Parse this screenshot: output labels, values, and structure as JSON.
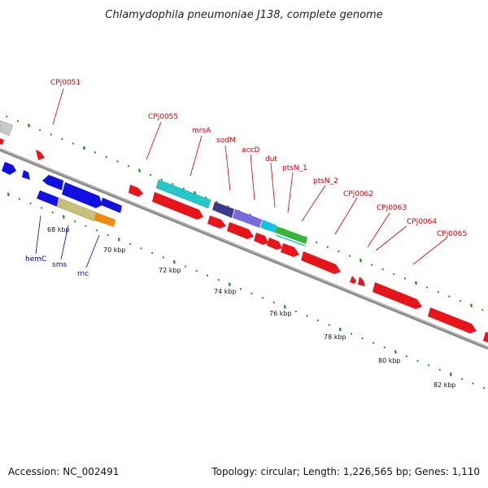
{
  "title": "Chlamydophila pneumoniae J138, complete genome",
  "footer": {
    "accession": "Accession: NC_002491",
    "summary": "Topology: circular; Length: 1,226,565 bp; Genes: 1,110"
  },
  "scale": [
    "68 kbp",
    "70 kbp",
    "72 kbp",
    "74 kbp",
    "76 kbp",
    "78 kbp",
    "80 kbp",
    "82 kbp"
  ],
  "colors": {
    "cds_forward": "#e8141b",
    "cds_reverse_blue": "#1010e0",
    "cyan": "#25c8c8",
    "khaki": "#c8c07a",
    "orange": "#f08a10",
    "navy": "#3a3a8a",
    "slate": "#7a6ae0",
    "sky": "#18c0e8",
    "green": "#36b536",
    "grey": "#c8c8c8",
    "tick_green": "#1a8a1a",
    "backbone": "#8a8a8a"
  },
  "genes_red": [
    "CPj0051",
    "CPj0055",
    "mrsA",
    "sodM",
    "accD",
    "dut",
    "ptsN_1",
    "ptsN_2",
    "CPj0062",
    "CPj0063",
    "CPj0064",
    "CPj0065"
  ],
  "genes_blue": [
    "hemC",
    "sms",
    "rnc"
  ]
}
